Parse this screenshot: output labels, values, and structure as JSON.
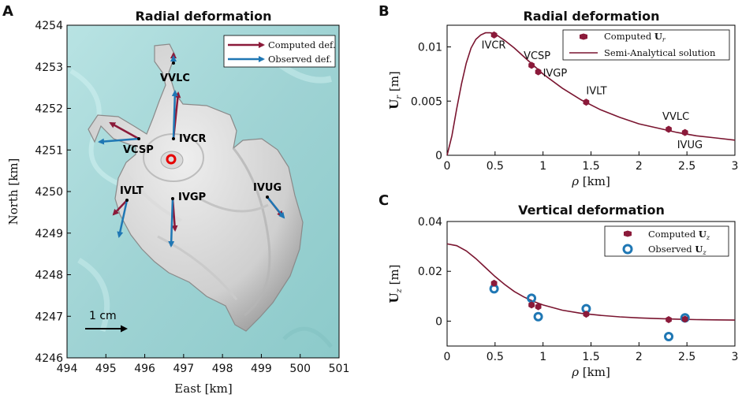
{
  "panels": {
    "A": {
      "letter": "A",
      "title": "Radial deformation",
      "xlabel": "East [km]",
      "ylabel": "North [km]",
      "xticks": [
        "494",
        "495",
        "496",
        "497",
        "498",
        "499",
        "500",
        "501"
      ],
      "yticks": [
        "4254",
        "4253",
        "4252",
        "4251",
        "4250",
        "4249",
        "4248",
        "4247",
        "4246"
      ],
      "legend": [
        "Computed def.",
        "Observed def."
      ],
      "scale_label": "1 cm",
      "source_marker": "red-circle",
      "stations": [
        {
          "name": "VVLC",
          "east": 496.53,
          "north": 4253.22
        },
        {
          "name": "IVCR",
          "east": 496.53,
          "north": 4251.25
        },
        {
          "name": "VCSP",
          "east": 495.78,
          "north": 4251.25
        },
        {
          "name": "IVLT",
          "east": 495.43,
          "north": 4249.8
        },
        {
          "name": "IVGP",
          "east": 496.53,
          "north": 4249.82
        },
        {
          "name": "IVUG",
          "east": 498.83,
          "north": 4249.85
        }
      ]
    },
    "B": {
      "letter": "B",
      "title": "Radial deformation",
      "legend": [
        "Computed U_r",
        "Semi-Analytical solution"
      ]
    },
    "C": {
      "letter": "C",
      "title": "Vertical deformation",
      "legend": [
        "Computed U_z",
        "Observed U_z"
      ]
    }
  },
  "colors": {
    "computed": "#8b1a3a",
    "observed": "#1f77b4",
    "curve": "#7a1530",
    "source": "#e60000"
  },
  "chart_data": [
    {
      "type": "scatter",
      "panel": "B",
      "title": "Radial deformation",
      "xlabel": "ρ [km]",
      "ylabel": "U_r [m]",
      "xlim": [
        0,
        3
      ],
      "ylim": [
        0,
        0.012
      ],
      "xticks": [
        "0",
        "0.5",
        "1",
        "1.5",
        "2",
        "2.5",
        "3"
      ],
      "yticks": [
        "0",
        "0.005",
        "0.01"
      ],
      "series": [
        {
          "name": "Computed U_r",
          "points": [
            {
              "label": "IVCR",
              "x": 0.49,
              "y": 0.0111
            },
            {
              "label": "VCSP",
              "x": 0.88,
              "y": 0.0083
            },
            {
              "label": "IVGP",
              "x": 0.95,
              "y": 0.0077
            },
            {
              "label": "IVLT",
              "x": 1.45,
              "y": 0.0049
            },
            {
              "label": "VVLC",
              "x": 2.31,
              "y": 0.0024
            },
            {
              "label": "IVUG",
              "x": 2.48,
              "y": 0.0021
            }
          ]
        },
        {
          "name": "Semi-Analytical solution",
          "x": [
            0,
            0.05,
            0.1,
            0.15,
            0.2,
            0.25,
            0.3,
            0.35,
            0.4,
            0.45,
            0.5,
            0.6,
            0.7,
            0.8,
            0.9,
            1.0,
            1.2,
            1.4,
            1.6,
            1.8,
            2.0,
            2.2,
            2.4,
            2.6,
            2.8,
            3.0
          ],
          "y": [
            0,
            0.0018,
            0.0043,
            0.0066,
            0.0085,
            0.0099,
            0.0107,
            0.0111,
            0.0113,
            0.0113,
            0.0112,
            0.0106,
            0.0099,
            0.0091,
            0.0083,
            0.0075,
            0.0062,
            0.0051,
            0.0042,
            0.0035,
            0.0029,
            0.0025,
            0.0021,
            0.0018,
            0.0016,
            0.0014
          ]
        }
      ]
    },
    {
      "type": "scatter",
      "panel": "C",
      "title": "Vertical deformation",
      "xlabel": "ρ [km]",
      "ylabel": "U_z [m]",
      "xlim": [
        0,
        3
      ],
      "ylim": [
        -0.01,
        0.04
      ],
      "xticks": [
        "0",
        "0.5",
        "1",
        "1.5",
        "2",
        "2.5",
        "3"
      ],
      "yticks": [
        "0",
        "0.02",
        "0.04"
      ],
      "series": [
        {
          "name": "Computed U_z",
          "x": [
            0.49,
            0.88,
            0.95,
            1.45,
            2.31,
            2.48
          ],
          "y": [
            0.0152,
            0.0065,
            0.0058,
            0.0028,
            0.0006,
            0.0008
          ]
        },
        {
          "name": "Observed U_z",
          "x": [
            0.49,
            0.88,
            0.95,
            1.45,
            2.31,
            2.48
          ],
          "y": [
            0.013,
            0.0092,
            0.0018,
            0.005,
            -0.0062,
            0.0013
          ]
        },
        {
          "name": "Semi-Analytical solution",
          "x": [
            0,
            0.1,
            0.2,
            0.3,
            0.4,
            0.5,
            0.6,
            0.7,
            0.8,
            0.9,
            1.0,
            1.2,
            1.4,
            1.6,
            1.8,
            2.0,
            2.2,
            2.4,
            2.6,
            2.8,
            3.0
          ],
          "y": [
            0.031,
            0.0303,
            0.0282,
            0.0251,
            0.0215,
            0.0179,
            0.0147,
            0.0119,
            0.0097,
            0.0079,
            0.0065,
            0.0044,
            0.0031,
            0.0023,
            0.0017,
            0.0013,
            0.001,
            0.0008,
            0.0006,
            0.0005,
            0.0004
          ]
        }
      ]
    }
  ]
}
